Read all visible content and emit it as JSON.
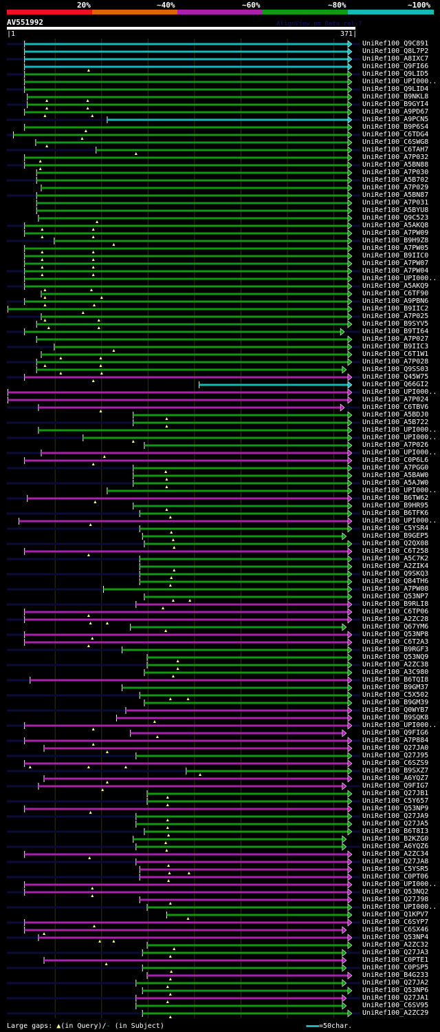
{
  "legend": {
    "labels": [
      "20%",
      "~40%",
      "~60%",
      "~80%",
      "~100%"
    ],
    "colors": [
      "#ee1122",
      "#dd6600",
      "#aa22aa",
      "#119911",
      "#11bbbb"
    ]
  },
  "query": {
    "id": "AV551992",
    "start": "1",
    "end": "371",
    "length": 371
  },
  "version_text": "AlignView.pm Beta rel.7",
  "colors": {
    "cyan": "#11bbbb",
    "green": "#119911",
    "purple": "#aa22aa",
    "unaligned": "#0b0b3a",
    "grid": "#33330f",
    "gap": "#ffff88"
  },
  "rows": [
    {
      "label": "UniRef100_Q9C891",
      "c": "cyan",
      "s": 20,
      "e": 368,
      "ext": 1,
      "g": []
    },
    {
      "label": "UniRef100_Q8L7P2",
      "c": "cyan",
      "s": 20,
      "e": 368,
      "ext": 0,
      "g": []
    },
    {
      "label": "UniRef100_A8IXC7",
      "c": "cyan",
      "s": 20,
      "e": 368,
      "ext": 1,
      "g": []
    },
    {
      "label": "UniRef100_Q9FI66",
      "c": "cyan",
      "s": 20,
      "e": 368,
      "ext": 0,
      "g": [
        89
      ]
    },
    {
      "label": "UniRef100_Q9LID5",
      "c": "green",
      "s": 20,
      "e": 368,
      "ext": 1,
      "g": []
    },
    {
      "label": "UniRef100_UPI000..",
      "c": "green",
      "s": 20,
      "e": 368,
      "ext": 0,
      "g": []
    },
    {
      "label": "UniRef100_Q9LID4",
      "c": "green",
      "s": 20,
      "e": 368,
      "ext": 1,
      "g": []
    },
    {
      "label": "UniRef100_B9NKL8",
      "c": "green",
      "s": 23,
      "e": 368,
      "ext": 0,
      "g": [
        44,
        88
      ]
    },
    {
      "label": "UniRef100_B9GYI4",
      "c": "green",
      "s": 23,
      "e": 368,
      "ext": 1,
      "g": [
        44,
        88
      ]
    },
    {
      "label": "UniRef100_A9PD67",
      "c": "green",
      "s": 20,
      "e": 368,
      "ext": 0,
      "g": [
        42,
        93
      ]
    },
    {
      "label": "UniRef100_A9PCN5",
      "c": "cyan",
      "s": 109,
      "e": 368,
      "ext": 1,
      "g": []
    },
    {
      "label": "UniRef100_B9P6S4",
      "c": "green",
      "s": 20,
      "e": 368,
      "ext": 0,
      "g": [
        86
      ]
    },
    {
      "label": "UniRef100_C6TDG4",
      "c": "green",
      "s": 8,
      "e": 368,
      "ext": 1,
      "g": [
        82
      ]
    },
    {
      "label": "UniRef100_C6SWG8",
      "c": "green",
      "s": 32,
      "e": 368,
      "ext": 0,
      "g": [
        44
      ]
    },
    {
      "label": "UniRef100_C6TAH7",
      "c": "green",
      "s": 97,
      "e": 368,
      "ext": 1,
      "g": [
        140
      ]
    },
    {
      "label": "UniRef100_A7P032",
      "c": "green",
      "s": 20,
      "e": 368,
      "ext": 0,
      "g": [
        37
      ]
    },
    {
      "label": "UniRef100_A5BN88",
      "c": "green",
      "s": 20,
      "e": 368,
      "ext": 1,
      "g": [
        37
      ]
    },
    {
      "label": "UniRef100_A7P030",
      "c": "green",
      "s": 33,
      "e": 368,
      "ext": 0,
      "g": []
    },
    {
      "label": "UniRef100_A5B702",
      "c": "green",
      "s": 33,
      "e": 368,
      "ext": 1,
      "g": []
    },
    {
      "label": "UniRef100_A7P029",
      "c": "green",
      "s": 38,
      "e": 368,
      "ext": 0,
      "g": []
    },
    {
      "label": "UniRef100_A5BN87",
      "c": "green",
      "s": 33,
      "e": 368,
      "ext": 1,
      "g": []
    },
    {
      "label": "UniRef100_A7P031",
      "c": "green",
      "s": 33,
      "e": 368,
      "ext": 0,
      "g": []
    },
    {
      "label": "UniRef100_A5BYU8",
      "c": "green",
      "s": 33,
      "e": 368,
      "ext": 0,
      "g": []
    },
    {
      "label": "UniRef100_Q9C523",
      "c": "green",
      "s": 35,
      "e": 368,
      "ext": 0,
      "g": [
        98
      ]
    },
    {
      "label": "UniRef100_A5AKQ8",
      "c": "green",
      "s": 20,
      "e": 368,
      "ext": 1,
      "g": [
        39,
        94
      ]
    },
    {
      "label": "UniRef100_A7PW09",
      "c": "green",
      "s": 20,
      "e": 368,
      "ext": 0,
      "g": [
        39,
        94
      ]
    },
    {
      "label": "UniRef100_B9H9Z8",
      "c": "green",
      "s": 52,
      "e": 368,
      "ext": 1,
      "g": [
        116
      ]
    },
    {
      "label": "UniRef100_A7PW05",
      "c": "green",
      "s": 20,
      "e": 368,
      "ext": 0,
      "g": [
        39,
        94
      ]
    },
    {
      "label": "UniRef100_B9IIC0",
      "c": "green",
      "s": 20,
      "e": 368,
      "ext": 0,
      "g": [
        39,
        94
      ]
    },
    {
      "label": "UniRef100_A7PW07",
      "c": "green",
      "s": 20,
      "e": 368,
      "ext": 0,
      "g": [
        39,
        94
      ]
    },
    {
      "label": "UniRef100_A7PW04",
      "c": "green",
      "s": 20,
      "e": 368,
      "ext": 1,
      "g": [
        39,
        94
      ]
    },
    {
      "label": "UniRef100_UPI000..",
      "c": "green",
      "s": 20,
      "e": 368,
      "ext": 0,
      "g": []
    },
    {
      "label": "UniRef100_A5AKQ9",
      "c": "green",
      "s": 20,
      "e": 368,
      "ext": 1,
      "g": [
        42,
        92
      ]
    },
    {
      "label": "UniRef100_C6TF90",
      "c": "green",
      "s": 38,
      "e": 368,
      "ext": 0,
      "g": [
        42,
        103
      ]
    },
    {
      "label": "UniRef100_A9PBN6",
      "c": "green",
      "s": 20,
      "e": 368,
      "ext": 1,
      "g": [
        42,
        95
      ]
    },
    {
      "label": "UniRef100_B9IIC2",
      "c": "green",
      "s": 2,
      "e": 368,
      "ext": 0,
      "g": [
        83
      ]
    },
    {
      "label": "UniRef100_A7P025",
      "c": "green",
      "s": 38,
      "e": 368,
      "ext": 1,
      "g": [
        42,
        100
      ]
    },
    {
      "label": "UniRef100_B9SYV5",
      "c": "green",
      "s": 33,
      "e": 368,
      "ext": 0,
      "g": [
        46,
        100
      ]
    },
    {
      "label": "UniRef100_B9TI64",
      "c": "green",
      "s": 20,
      "e": 360,
      "ext": 1,
      "g": []
    },
    {
      "label": "UniRef100_A7P027",
      "c": "green",
      "s": 33,
      "e": 368,
      "ext": 0,
      "g": []
    },
    {
      "label": "UniRef100_B9IIC3",
      "c": "green",
      "s": 52,
      "e": 368,
      "ext": 1,
      "g": [
        116
      ]
    },
    {
      "label": "UniRef100_C6T1W1",
      "c": "green",
      "s": 38,
      "e": 368,
      "ext": 0,
      "g": [
        59,
        102
      ]
    },
    {
      "label": "UniRef100_A7P028",
      "c": "green",
      "s": 33,
      "e": 368,
      "ext": 1,
      "g": [
        42,
        102
      ]
    },
    {
      "label": "UniRef100_Q9SS03",
      "c": "green",
      "s": 33,
      "e": 362,
      "ext": 0,
      "g": [
        59,
        103
      ]
    },
    {
      "label": "UniRef100_Q45W75",
      "c": "purple",
      "s": 20,
      "e": 368,
      "ext": 1,
      "g": [
        94
      ]
    },
    {
      "label": "UniRef100_Q66GI2",
      "c": "cyan",
      "s": 208,
      "e": 368,
      "ext": 0,
      "g": []
    },
    {
      "label": "UniRef100_UPI000..",
      "c": "purple",
      "s": 2,
      "e": 368,
      "ext": 1,
      "g": []
    },
    {
      "label": "UniRef100_A7P024",
      "c": "purple",
      "s": 2,
      "e": 368,
      "ext": 0,
      "g": []
    },
    {
      "label": "UniRef100_C6TBV6",
      "c": "purple",
      "s": 35,
      "e": 360,
      "ext": 1,
      "g": [
        102
      ]
    },
    {
      "label": "UniRef100_A5BDJ0",
      "c": "green",
      "s": 137,
      "e": 368,
      "ext": 0,
      "g": [
        173
      ]
    },
    {
      "label": "UniRef100_A5B722",
      "c": "green",
      "s": 137,
      "e": 368,
      "ext": 1,
      "g": [
        173
      ]
    },
    {
      "label": "UniRef100_UPI000..",
      "c": "green",
      "s": 35,
      "e": 368,
      "ext": 0,
      "g": []
    },
    {
      "label": "UniRef100_UPI000..",
      "c": "green",
      "s": 83,
      "e": 368,
      "ext": 1,
      "g": [
        137
      ]
    },
    {
      "label": "UniRef100_A7P026",
      "c": "green",
      "s": 149,
      "e": 368,
      "ext": 0,
      "g": []
    },
    {
      "label": "UniRef100_UPI000..",
      "c": "purple",
      "s": 38,
      "e": 368,
      "ext": 1,
      "g": [
        106
      ]
    },
    {
      "label": "UniRef100_C0P6L6",
      "c": "purple",
      "s": 20,
      "e": 368,
      "ext": 0,
      "g": [
        94
      ]
    },
    {
      "label": "UniRef100_A7PGG0",
      "c": "green",
      "s": 137,
      "e": 368,
      "ext": 1,
      "g": [
        172
      ]
    },
    {
      "label": "UniRef100_A5BAW0",
      "c": "green",
      "s": 137,
      "e": 368,
      "ext": 0,
      "g": [
        173
      ]
    },
    {
      "label": "UniRef100_A5AJW0",
      "c": "green",
      "s": 137,
      "e": 368,
      "ext": 1,
      "g": [
        173
      ]
    },
    {
      "label": "UniRef100_UPI000..",
      "c": "green",
      "s": 109,
      "e": 368,
      "ext": 0,
      "g": []
    },
    {
      "label": "UniRef100_B6TW62",
      "c": "purple",
      "s": 23,
      "e": 368,
      "ext": 1,
      "g": [
        96
      ]
    },
    {
      "label": "UniRef100_B9HR95",
      "c": "green",
      "s": 137,
      "e": 368,
      "ext": 0,
      "g": [
        173
      ]
    },
    {
      "label": "UniRef100_B6TFK6",
      "c": "green",
      "s": 144,
      "e": 368,
      "ext": 1,
      "g": [
        177
      ]
    },
    {
      "label": "UniRef100_UPI000..",
      "c": "purple",
      "s": 14,
      "e": 368,
      "ext": 0,
      "g": [
        91
      ]
    },
    {
      "label": "UniRef100_C5YSR4",
      "c": "green",
      "s": 144,
      "e": 368,
      "ext": 1,
      "g": [
        178
      ]
    },
    {
      "label": "UniRef100_B9GEP5",
      "c": "green",
      "s": 147,
      "e": 362,
      "ext": 0,
      "g": [
        180
      ]
    },
    {
      "label": "UniRef100_Q2QX08",
      "c": "green",
      "s": 149,
      "e": 368,
      "ext": 1,
      "g": [
        181
      ]
    },
    {
      "label": "UniRef100_C6T258",
      "c": "purple",
      "s": 20,
      "e": 368,
      "ext": 0,
      "g": [
        89
      ]
    },
    {
      "label": "UniRef100_A5C7K2",
      "c": "green",
      "s": 144,
      "e": 368,
      "ext": 1,
      "g": []
    },
    {
      "label": "UniRef100_A2ZIK4",
      "c": "green",
      "s": 144,
      "e": 368,
      "ext": 0,
      "g": [
        181
      ]
    },
    {
      "label": "UniRef100_Q9SKQ3",
      "c": "green",
      "s": 144,
      "e": 368,
      "ext": 1,
      "g": [
        178
      ]
    },
    {
      "label": "UniRef100_Q84TH6",
      "c": "green",
      "s": 144,
      "e": 368,
      "ext": 0,
      "g": [
        177
      ]
    },
    {
      "label": "UniRef100_A7PW08",
      "c": "green",
      "s": 105,
      "e": 368,
      "ext": 1,
      "g": []
    },
    {
      "label": "UniRef100_Q53NP7",
      "c": "green",
      "s": 149,
      "e": 368,
      "ext": 0,
      "g": [
        180,
        198
      ]
    },
    {
      "label": "UniRef100_B9RLI8",
      "c": "purple",
      "s": 140,
      "e": 368,
      "ext": 1,
      "g": [
        169
      ]
    },
    {
      "label": "UniRef100_C6TP06",
      "c": "purple",
      "s": 20,
      "e": 368,
      "ext": 0,
      "g": [
        89
      ]
    },
    {
      "label": "UniRef100_A2ZC28",
      "c": "purple",
      "s": 20,
      "e": 368,
      "ext": 1,
      "g": [
        91,
        109
      ]
    },
    {
      "label": "UniRef100_Q67YM6",
      "c": "green",
      "s": 134,
      "e": 362,
      "ext": 0,
      "g": [
        172
      ]
    },
    {
      "label": "UniRef100_Q53NP8",
      "c": "purple",
      "s": 20,
      "e": 368,
      "ext": 1,
      "g": [
        93
      ]
    },
    {
      "label": "UniRef100_C6T2A3",
      "c": "purple",
      "s": 20,
      "e": 368,
      "ext": 0,
      "g": [
        89
      ]
    },
    {
      "label": "UniRef100_B9RGF3",
      "c": "green",
      "s": 125,
      "e": 368,
      "ext": 1,
      "g": []
    },
    {
      "label": "UniRef100_Q53NQ9",
      "c": "green",
      "s": 152,
      "e": 368,
      "ext": 0,
      "g": [
        185
      ]
    },
    {
      "label": "UniRef100_A2ZC38",
      "c": "green",
      "s": 152,
      "e": 368,
      "ext": 1,
      "g": [
        185
      ]
    },
    {
      "label": "UniRef100_A3C980",
      "c": "green",
      "s": 149,
      "e": 368,
      "ext": 0,
      "g": [
        180
      ]
    },
    {
      "label": "UniRef100_B6TQI8",
      "c": "purple",
      "s": 26,
      "e": 368,
      "ext": 1,
      "g": []
    },
    {
      "label": "UniRef100_B9GM37",
      "c": "green",
      "s": 125,
      "e": 368,
      "ext": 0,
      "g": []
    },
    {
      "label": "UniRef100_C5X502",
      "c": "green",
      "s": 144,
      "e": 368,
      "ext": 1,
      "g": [
        177,
        196
      ]
    },
    {
      "label": "UniRef100_B9GM39",
      "c": "green",
      "s": 149,
      "e": 368,
      "ext": 0,
      "g": []
    },
    {
      "label": "UniRef100_Q0WYB7",
      "c": "purple",
      "s": 129,
      "e": 368,
      "ext": 1,
      "g": []
    },
    {
      "label": "UniRef100_B9SQK8",
      "c": "purple",
      "s": 119,
      "e": 368,
      "ext": 0,
      "g": [
        160
      ]
    },
    {
      "label": "UniRef100_UPI000..",
      "c": "purple",
      "s": 20,
      "e": 368,
      "ext": 1,
      "g": [
        94
      ]
    },
    {
      "label": "UniRef100_Q9FIG6",
      "c": "purple",
      "s": 134,
      "e": 362,
      "ext": 0,
      "g": [
        163
      ]
    },
    {
      "label": "UniRef100_A7P884",
      "c": "purple",
      "s": 20,
      "e": 368,
      "ext": 1,
      "g": [
        94
      ]
    },
    {
      "label": "UniRef100_Q27JA0",
      "c": "purple",
      "s": 41,
      "e": 368,
      "ext": 0,
      "g": [
        109
      ]
    },
    {
      "label": "UniRef100_Q27J95",
      "c": "green",
      "s": 140,
      "e": 368,
      "ext": 1,
      "g": []
    },
    {
      "label": "UniRef100_C6SZS9",
      "c": "purple",
      "s": 20,
      "e": 368,
      "ext": 0,
      "g": [
        26,
        89,
        129
      ]
    },
    {
      "label": "UniRef100_B9SXZ7",
      "c": "green",
      "s": 194,
      "e": 368,
      "ext": 1,
      "g": [
        209
      ]
    },
    {
      "label": "UniRef100_A6YQZ7",
      "c": "purple",
      "s": 41,
      "e": 368,
      "ext": 0,
      "g": [
        109
      ]
    },
    {
      "label": "UniRef100_Q9FIG7",
      "c": "purple",
      "s": 35,
      "e": 362,
      "ext": 1,
      "g": [
        104
      ]
    },
    {
      "label": "UniRef100_Q27JB1",
      "c": "green",
      "s": 152,
      "e": 368,
      "ext": 0,
      "g": [
        174
      ]
    },
    {
      "label": "UniRef100_C5Y657",
      "c": "green",
      "s": 152,
      "e": 368,
      "ext": 1,
      "g": [
        174
      ]
    },
    {
      "label": "UniRef100_Q53NP9",
      "c": "purple",
      "s": 20,
      "e": 368,
      "ext": 0,
      "g": [
        91
      ]
    },
    {
      "label": "UniRef100_Q27JA9",
      "c": "green",
      "s": 140,
      "e": 368,
      "ext": 1,
      "g": [
        174
      ]
    },
    {
      "label": "UniRef100_Q27JA5",
      "c": "green",
      "s": 140,
      "e": 368,
      "ext": 0,
      "g": [
        174
      ]
    },
    {
      "label": "UniRef100_B6T8I3",
      "c": "green",
      "s": 149,
      "e": 368,
      "ext": 1,
      "g": [
        175
      ]
    },
    {
      "label": "UniRef100_B2KZG0",
      "c": "green",
      "s": 137,
      "e": 362,
      "ext": 0,
      "g": [
        172
      ]
    },
    {
      "label": "UniRef100_A6YQZ6",
      "c": "green",
      "s": 140,
      "e": 362,
      "ext": 1,
      "g": [
        173
      ]
    },
    {
      "label": "UniRef100_A2ZC34",
      "c": "purple",
      "s": 20,
      "e": 368,
      "ext": 0,
      "g": [
        90
      ]
    },
    {
      "label": "UniRef100_Q27JA8",
      "c": "purple",
      "s": 140,
      "e": 368,
      "ext": 1,
      "g": [
        175
      ]
    },
    {
      "label": "UniRef100_C5YSR5",
      "c": "purple",
      "s": 144,
      "e": 368,
      "ext": 0,
      "g": [
        176,
        197
      ]
    },
    {
      "label": "UniRef100_C0PT06",
      "c": "purple",
      "s": 144,
      "e": 368,
      "ext": 1,
      "g": [
        175
      ]
    },
    {
      "label": "UniRef100_UPI000..",
      "c": "purple",
      "s": 20,
      "e": 368,
      "ext": 0,
      "g": [
        93
      ]
    },
    {
      "label": "UniRef100_Q53NQ2",
      "c": "purple",
      "s": 20,
      "e": 368,
      "ext": 1,
      "g": [
        93
      ]
    },
    {
      "label": "UniRef100_Q27J98",
      "c": "purple",
      "s": 144,
      "e": 368,
      "ext": 0,
      "g": [
        177
      ]
    },
    {
      "label": "UniRef100_UPI000..",
      "c": "green",
      "s": 152,
      "e": 368,
      "ext": 1,
      "g": []
    },
    {
      "label": "UniRef100_Q1KPV7",
      "c": "green",
      "s": 173,
      "e": 368,
      "ext": 0,
      "g": [
        196
      ]
    },
    {
      "label": "UniRef100_C6SYP7",
      "c": "purple",
      "s": 20,
      "e": 368,
      "ext": 1,
      "g": [
        95
      ]
    },
    {
      "label": "UniRef100_C6SX46",
      "c": "purple",
      "s": 20,
      "e": 362,
      "ext": 0,
      "g": [
        41
      ]
    },
    {
      "label": "UniRef100_Q53NP4",
      "c": "purple",
      "s": 35,
      "e": 368,
      "ext": 1,
      "g": [
        101,
        116
      ]
    },
    {
      "label": "UniRef100_A2ZC32",
      "c": "green",
      "s": 152,
      "e": 368,
      "ext": 0,
      "g": [
        181
      ]
    },
    {
      "label": "UniRef100_Q27JA3",
      "c": "green",
      "s": 147,
      "e": 362,
      "ext": 1,
      "g": [
        177
      ]
    },
    {
      "label": "UniRef100_C0PTE1",
      "c": "purple",
      "s": 41,
      "e": 362,
      "ext": 0,
      "g": [
        108
      ]
    },
    {
      "label": "UniRef100_C0PSP5",
      "c": "green",
      "s": 147,
      "e": 362,
      "ext": 1,
      "g": [
        178
      ]
    },
    {
      "label": "UniRef100_B4G233",
      "c": "purple",
      "s": 152,
      "e": 368,
      "ext": 0,
      "g": [
        177
      ]
    },
    {
      "label": "UniRef100_Q27JA2",
      "c": "green",
      "s": 140,
      "e": 362,
      "ext": 1,
      "g": [
        174
      ]
    },
    {
      "label": "UniRef100_Q53NP6",
      "c": "green",
      "s": 147,
      "e": 368,
      "ext": 0,
      "g": [
        177
      ]
    },
    {
      "label": "UniRef100_Q27JA1",
      "c": "purple",
      "s": 140,
      "e": 362,
      "ext": 1,
      "g": [
        174
      ]
    },
    {
      "label": "UniRef100_C6SV95",
      "c": "green",
      "s": 140,
      "e": 362,
      "ext": 0,
      "g": []
    },
    {
      "label": "UniRef100_A2ZC29",
      "c": "green",
      "s": 147,
      "e": 368,
      "ext": 1,
      "g": [
        177
      ]
    }
  ],
  "footer": {
    "gaps_label": "Large gaps:",
    "query_gap_label": "(in Query)/",
    "subject_gap_label": "(in Subject)",
    "scale_label": "=50char."
  }
}
